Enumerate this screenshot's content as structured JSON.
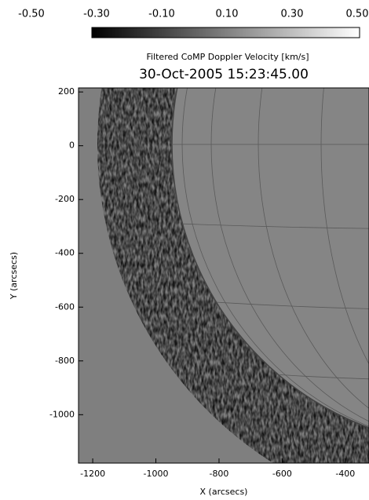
{
  "chart_data": {
    "type": "image",
    "title": "30-Oct-2005 15:23:45.00",
    "colorbar_label": "Filtered CoMP Doppler Velocity [km/s]",
    "x_label": "X (arcsecs)",
    "y_label": "Y (arcsecs)",
    "clim": [
      -0.5,
      0.5
    ],
    "cticks": [
      {
        "value": -0.5,
        "label": "-0.50"
      },
      {
        "value": -0.3,
        "label": "-0.30"
      },
      {
        "value": -0.1,
        "label": "-0.10"
      },
      {
        "value": 0.1,
        "label": "0.10"
      },
      {
        "value": 0.3,
        "label": "0.30"
      },
      {
        "value": 0.5,
        "label": "0.50"
      }
    ],
    "xlim": [
      -1245,
      -325
    ],
    "xticks": [
      -1200,
      -1000,
      -800,
      -600,
      -400
    ],
    "ylim": [
      -1180,
      215
    ],
    "yticks": [
      200,
      0,
      -200,
      -400,
      -600,
      -800,
      -1000
    ]
  }
}
